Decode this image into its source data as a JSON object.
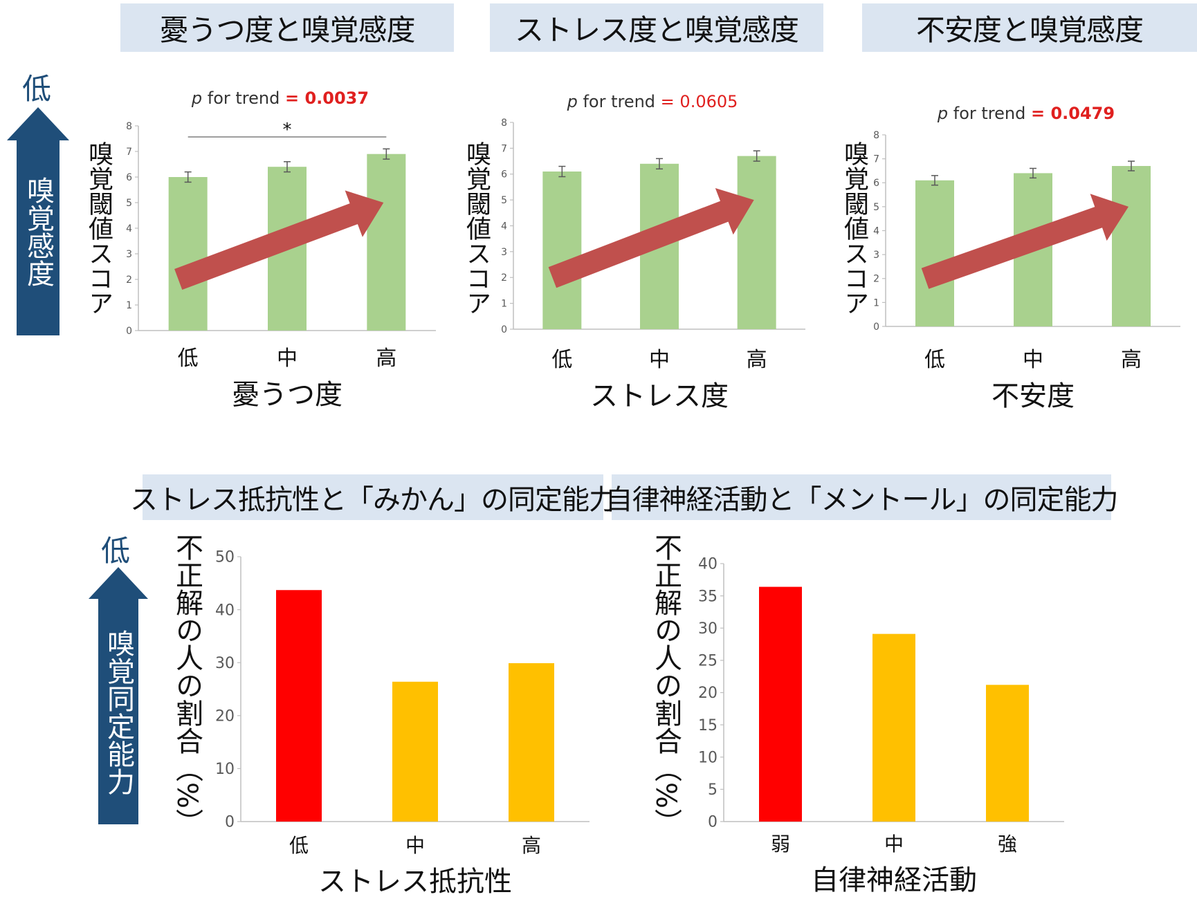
{
  "top_titles": [
    "憂うつ度と嗅覚感度",
    "ストレス度と嗅覚感度",
    "不安度と嗅覚感度"
  ],
  "bottom_titles": [
    "ストレス抵抗性と「みかん」の同定能力",
    "自律神経活動と「メントール」の同定能力"
  ],
  "left_arrow_top": {
    "low": "低",
    "label": "嗅覚感度"
  },
  "left_arrow_bottom": {
    "low": "低",
    "label": "嗅覚同定能力"
  },
  "colors": {
    "green": "#a9d18e",
    "red": "#ff0000",
    "amber": "#ffc000",
    "arrow": "#c0504d",
    "navy": "#1f4e79",
    "pvalue": "#e0201f"
  },
  "chart_data": [
    {
      "type": "bar",
      "categories": [
        "低",
        "中",
        "高"
      ],
      "values": [
        6.0,
        6.4,
        6.9
      ],
      "errors": [
        0.2,
        0.2,
        0.2
      ],
      "ylim": [
        0,
        8
      ],
      "yticks": [
        "0",
        "1",
        "2",
        "3",
        "4",
        "5",
        "6",
        "7",
        "8"
      ],
      "ylabel": "嗅覚閾値スコア",
      "xlabel": "憂うつ度",
      "p_prefix": "p",
      "p_text": " for trend ",
      "p_eq": "=",
      "p_value": "0.0037",
      "p_bold": true,
      "significance": "*"
    },
    {
      "type": "bar",
      "categories": [
        "低",
        "中",
        "高"
      ],
      "values": [
        6.1,
        6.4,
        6.7
      ],
      "errors": [
        0.2,
        0.2,
        0.2
      ],
      "ylim": [
        0,
        8
      ],
      "yticks": [
        "0",
        "1",
        "2",
        "3",
        "4",
        "5",
        "6",
        "7",
        "8"
      ],
      "ylabel": "嗅覚閾値スコア",
      "xlabel": "ストレス度",
      "p_prefix": "p",
      "p_text": " for trend ",
      "p_eq": "=",
      "p_value": "0.0605",
      "p_bold": false
    },
    {
      "type": "bar",
      "categories": [
        "低",
        "中",
        "高"
      ],
      "values": [
        6.1,
        6.4,
        6.7
      ],
      "errors": [
        0.2,
        0.2,
        0.2
      ],
      "ylim": [
        0,
        8
      ],
      "yticks": [
        "0",
        "1",
        "2",
        "3",
        "4",
        "5",
        "6",
        "7",
        "8"
      ],
      "ylabel": "嗅覚閾値スコア",
      "xlabel": "不安度",
      "p_prefix": "p",
      "p_text": " for trend ",
      "p_eq": "=",
      "p_value": "0.0479",
      "p_bold": true
    },
    {
      "type": "bar",
      "categories": [
        "低",
        "中",
        "高"
      ],
      "values": [
        43.7,
        26.4,
        29.9
      ],
      "bar_colors": [
        "#ff0000",
        "#ffc000",
        "#ffc000"
      ],
      "ylim": [
        0,
        50
      ],
      "yticks": [
        "0",
        "10",
        "20",
        "30",
        "40",
        "50"
      ],
      "ylabel": "不正解の人の割合（%）",
      "xlabel": "ストレス抵抗性"
    },
    {
      "type": "bar",
      "categories": [
        "弱",
        "中",
        "強"
      ],
      "values": [
        36.4,
        29.1,
        21.2
      ],
      "bar_colors": [
        "#ff0000",
        "#ffc000",
        "#ffc000"
      ],
      "ylim": [
        0,
        40
      ],
      "yticks": [
        "0",
        "5",
        "10",
        "15",
        "20",
        "25",
        "30",
        "35",
        "40"
      ],
      "ylabel": "不正解の人の割合（%）",
      "xlabel": "自律神経活動"
    }
  ]
}
